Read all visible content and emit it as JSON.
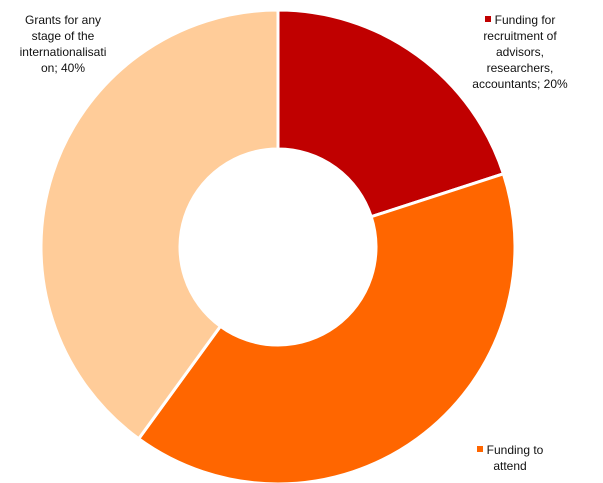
{
  "chart_data": {
    "type": "pie",
    "style": "donut",
    "slices": [
      {
        "label_lines": [
          "Funding for",
          "recruitment of",
          "advisors,",
          "researchers,",
          "accountants; 20%"
        ],
        "value": 20,
        "color": "#C00000"
      },
      {
        "label_lines": [
          "Funding to",
          "attend"
        ],
        "value": 40,
        "color": "#FF6600"
      },
      {
        "label_lines": [
          "Grants for any",
          "stage of the",
          "internationalisati",
          "on; 40%"
        ],
        "value": 40,
        "color": "#FFCC99"
      }
    ]
  }
}
